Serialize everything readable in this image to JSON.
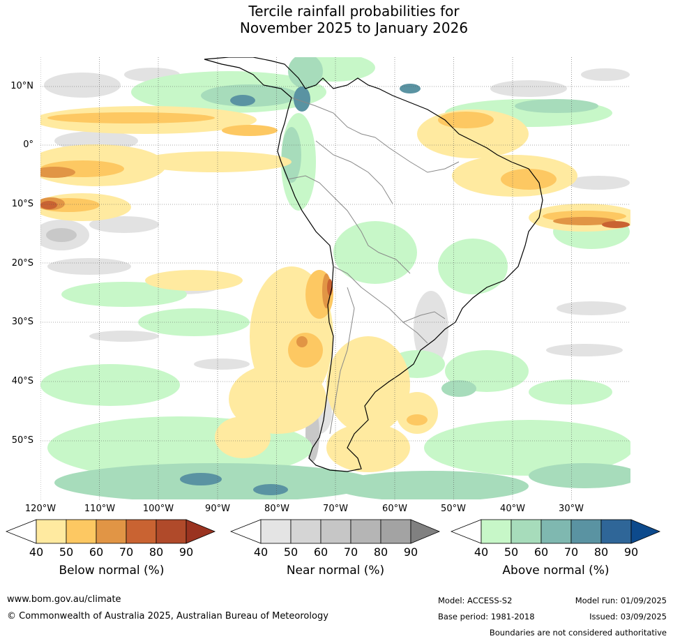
{
  "title": {
    "line1": "Tercile rainfall probabilities for",
    "line2": "November 2025 to January 2026"
  },
  "axes": {
    "lat_labels": [
      "10°N",
      "0°",
      "10°S",
      "20°S",
      "30°S",
      "40°S",
      "50°S"
    ],
    "lon_labels": [
      "120°W",
      "110°W",
      "100°W",
      "90°W",
      "80°W",
      "70°W",
      "60°W",
      "50°W",
      "40°W",
      "30°W"
    ]
  },
  "legends": [
    {
      "title": "Below normal (%)",
      "ticks": [
        "40",
        "50",
        "60",
        "70",
        "80",
        "90"
      ],
      "colors": [
        "#ffffff",
        "#ffeaa0",
        "#fdc862",
        "#e19545",
        "#c96332",
        "#b04a2a",
        "#9a3320"
      ]
    },
    {
      "title": "Near normal (%)",
      "ticks": [
        "40",
        "50",
        "60",
        "70",
        "80",
        "90"
      ],
      "colors": [
        "#ffffff",
        "#e4e4e4",
        "#d5d5d5",
        "#c6c6c6",
        "#b5b5b5",
        "#a3a3a3",
        "#808080"
      ]
    },
    {
      "title": "Above normal (%)",
      "ticks": [
        "40",
        "50",
        "60",
        "70",
        "80",
        "90"
      ],
      "colors": [
        "#ffffff",
        "#c7f7c8",
        "#a7dcbb",
        "#7fb8b0",
        "#5a93a2",
        "#2f6698",
        "#0d4a8c"
      ]
    }
  ],
  "footer": {
    "website": "www.bom.gov.au/climate",
    "copyright": "© Commonwealth of Australia 2025, Australian Bureau of Meteorology",
    "model": "Model: ACCESS-S2",
    "base_period": "Base period: 1981-2018",
    "model_run": "Model run: 01/09/2025",
    "issued": "Issued: 03/09/2025",
    "disclaimer": "Boundaries are not considered authoritative"
  }
}
